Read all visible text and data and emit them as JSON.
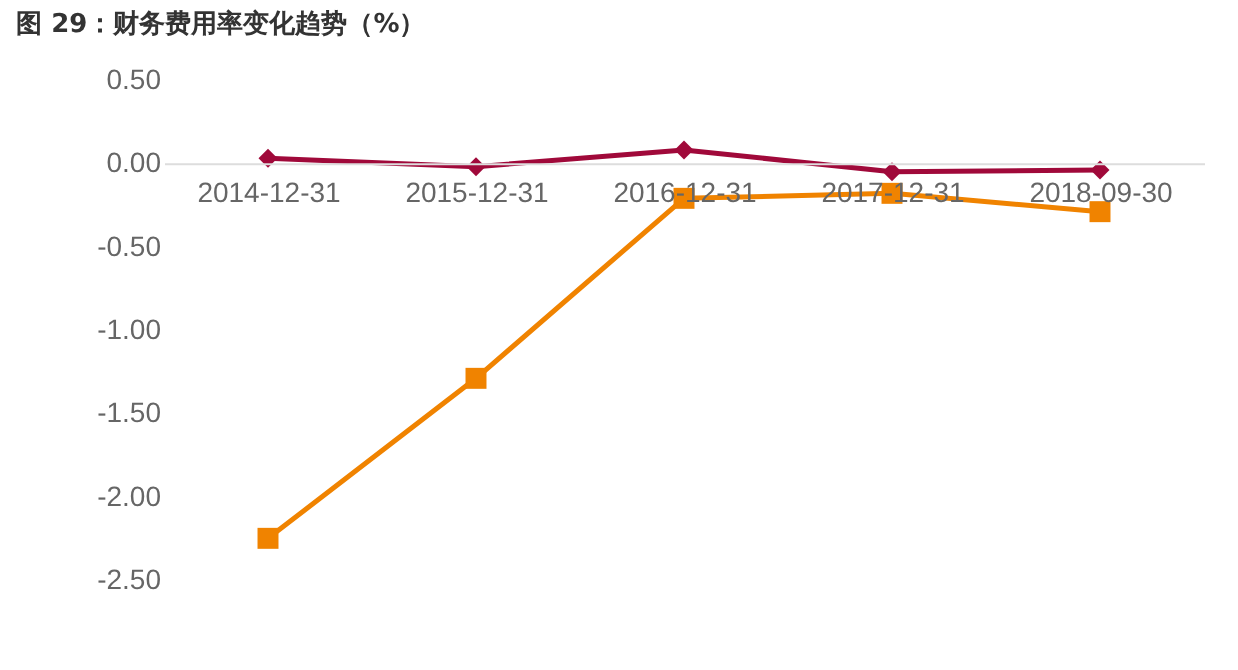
{
  "chart_data": {
    "type": "line",
    "title": "图 29：财务费用率变化趋势（%）",
    "categories": [
      "2014-12-31",
      "2015-12-31",
      "2016-12-31",
      "2017-12-31",
      "2018-09-30"
    ],
    "series": [
      {
        "color": "#a0093a",
        "marker": "diamond",
        "values": [
          0.03,
          -0.02,
          0.08,
          -0.05,
          -0.04
        ]
      },
      {
        "color": "#f08300",
        "marker": "square",
        "values": [
          -2.25,
          -1.29,
          -0.21,
          -0.18,
          -0.29
        ]
      }
    ],
    "ylim": [
      -2.5,
      0.5
    ],
    "yticks": [
      {
        "value": 0.5,
        "label": "0.50"
      },
      {
        "value": 0,
        "label": "0.00"
      },
      {
        "value": -0.5,
        "label": "-0.50"
      },
      {
        "value": -1,
        "label": "-1.00"
      },
      {
        "value": -1.5,
        "label": "-1.50"
      },
      {
        "value": -2,
        "label": "-2.00"
      },
      {
        "value": -2.5,
        "label": "-2.50"
      }
    ],
    "grid": false,
    "legend": false
  }
}
